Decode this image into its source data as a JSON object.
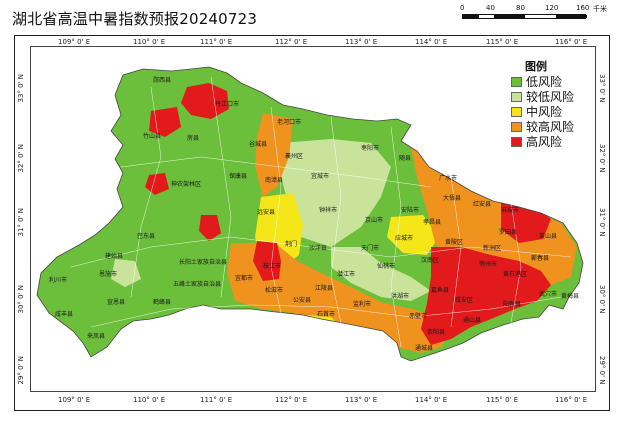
{
  "title": "湖北省高温中暑指数预报20240723",
  "scale": {
    "ticks": [
      "0",
      "40",
      "80",
      "120",
      "160"
    ],
    "unit": "千米"
  },
  "graticule": {
    "lon_labels": [
      "109° 0' E",
      "110° 0' E",
      "111° 0' E",
      "112° 0' E",
      "113° 0' E",
      "114° 0' E",
      "115° 0' E",
      "116° 0' E"
    ],
    "lat_labels": [
      "33° 0' N",
      "32° 0' N",
      "31° 0' N",
      "30° 0' N",
      "29° 0' N"
    ]
  },
  "legend": {
    "title": "图例",
    "items": [
      {
        "label": "低风险",
        "color": "#6bbf3a"
      },
      {
        "label": "较低风险",
        "color": "#c9e39a"
      },
      {
        "label": "中风险",
        "color": "#f5e61a"
      },
      {
        "label": "较高风险",
        "color": "#f0921e"
      },
      {
        "label": "高风险",
        "color": "#e31a1c"
      }
    ]
  },
  "places": [
    {
      "name": "郧西县"
    },
    {
      "name": "丹江口市"
    },
    {
      "name": "老河口市"
    },
    {
      "name": "竹山县"
    },
    {
      "name": "房县"
    },
    {
      "name": "谷城县"
    },
    {
      "name": "襄州区"
    },
    {
      "name": "枣阳市"
    },
    {
      "name": "随县"
    },
    {
      "name": "神农架林区"
    },
    {
      "name": "保康县"
    },
    {
      "name": "南漳县"
    },
    {
      "name": "宜城市"
    },
    {
      "name": "广水市"
    },
    {
      "name": "大悟县"
    },
    {
      "name": "红安县"
    },
    {
      "name": "麻城市"
    },
    {
      "name": "巴东县"
    },
    {
      "name": "远安县"
    },
    {
      "name": "钟祥市"
    },
    {
      "name": "京山市"
    },
    {
      "name": "安陆市"
    },
    {
      "name": "孝昌县"
    },
    {
      "name": "罗田县"
    },
    {
      "name": "英山县"
    },
    {
      "name": "建始县"
    },
    {
      "name": "长阳土家族自治县"
    },
    {
      "name": "荆门"
    },
    {
      "name": "沙洋县"
    },
    {
      "name": "天门市"
    },
    {
      "name": "应城市"
    },
    {
      "name": "黄陂区"
    },
    {
      "name": "新洲区"
    },
    {
      "name": "利川市"
    },
    {
      "name": "恩施市"
    },
    {
      "name": "宜都市"
    },
    {
      "name": "枝江市"
    },
    {
      "name": "潜江市"
    },
    {
      "name": "仙桃市"
    },
    {
      "name": "汉南区"
    },
    {
      "name": "鄂州市"
    },
    {
      "name": "黄石港区"
    },
    {
      "name": "蕲春县"
    },
    {
      "name": "武穴市"
    },
    {
      "name": "黄梅县"
    },
    {
      "name": "咸丰县"
    },
    {
      "name": "宣恩县"
    },
    {
      "name": "鹤峰县"
    },
    {
      "name": "五峰土家族自治县"
    },
    {
      "name": "松滋市"
    },
    {
      "name": "公安县"
    },
    {
      "name": "江陵县"
    },
    {
      "name": "监利市"
    },
    {
      "name": "洪湖市"
    },
    {
      "name": "嘉鱼县"
    },
    {
      "name": "咸安区"
    },
    {
      "name": "阳新县"
    },
    {
      "name": "来凤县"
    },
    {
      "name": "石首市"
    },
    {
      "name": "赤壁市"
    },
    {
      "name": "通山县"
    },
    {
      "name": "崇阳县"
    },
    {
      "name": "通城县"
    }
  ]
}
